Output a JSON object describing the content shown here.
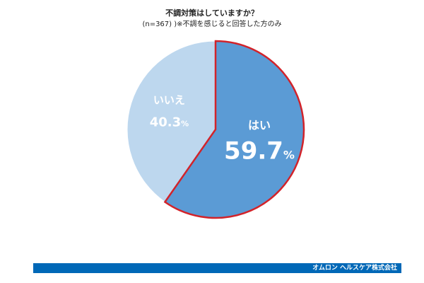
{
  "title": "不調対策はしていますか？",
  "subtitle": "(n=367) )※不調を感じると回答した方のみ",
  "footer": {
    "company": "オムロン ヘルスケア株式会社",
    "bar_color": "#0068b7"
  },
  "chart_data": {
    "type": "pie",
    "title": "不調対策はしていますか？",
    "subtitle": "(n=367) )※不調を感じると回答した方のみ",
    "slices": [
      {
        "label": "はい",
        "value": 59.7,
        "display_value": "59.7",
        "unit": "%",
        "color": "#5b9bd5",
        "outline": "#d2232a",
        "highlighted": true
      },
      {
        "label": "いいえ",
        "value": 40.3,
        "display_value": "40.3",
        "unit": "%",
        "color": "#bdd7ee",
        "highlighted": false
      }
    ]
  }
}
